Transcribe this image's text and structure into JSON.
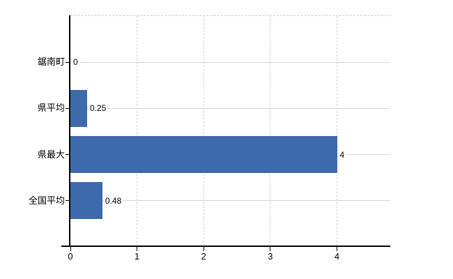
{
  "chart_data": {
    "type": "bar",
    "orientation": "horizontal",
    "title": "",
    "categories": [
      "鋸南町",
      "県平均",
      "県最大",
      "全国平均"
    ],
    "values": [
      0,
      0.25,
      4,
      0.48
    ],
    "value_labels": [
      "0",
      "0.25",
      "4",
      "0.48"
    ],
    "x_tick_labels": [
      "0",
      "1",
      "2",
      "3",
      "4"
    ],
    "x_tick_values": [
      0,
      1,
      2,
      3,
      4
    ],
    "xlim": [
      0,
      4.8
    ],
    "grid": true,
    "legend": false,
    "bar_color": "#3c6aaa"
  },
  "colors": {
    "bar": "#3c6aaa",
    "axis": "#000000",
    "vgrid": "#d2d2d2",
    "hgrid": "#d6d9d6",
    "plot_top_border": "#c9c9c9",
    "background": "#ffffff",
    "text": "#000000"
  }
}
